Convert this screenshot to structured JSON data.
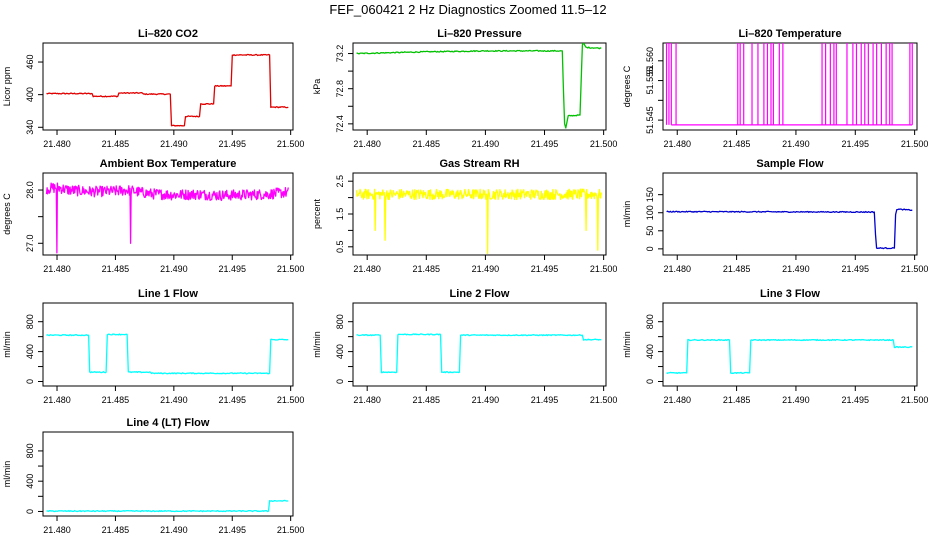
{
  "title": "FEF_060421  2 Hz Diagnostics Zoomed 11.5–12",
  "x_ticks": [
    "21.480",
    "21.485",
    "21.490",
    "21.495",
    "21.500"
  ],
  "x_tick_values": [
    21.48,
    21.485,
    21.49,
    21.495,
    21.5
  ],
  "xlim": [
    21.4788,
    21.5002
  ],
  "chart_data": [
    {
      "type": "line",
      "title": "Li–820 CO2",
      "ylabel": "Licor ppm",
      "color": "#e00000",
      "ylim": [
        335,
        495
      ],
      "yticks": [
        340,
        400,
        460
      ],
      "yticklabels": [
        "340",
        "400",
        "460"
      ],
      "x": [
        21.4791,
        21.483,
        21.4831,
        21.4852,
        21.4853,
        21.4873,
        21.4874,
        21.4897,
        21.4898,
        21.4909,
        21.491,
        21.4922,
        21.4923,
        21.4934,
        21.4935,
        21.4949,
        21.495,
        21.4982,
        21.4983,
        21.4998
      ],
      "y": [
        402,
        402,
        397,
        397,
        403,
        403,
        401,
        401,
        343,
        343,
        360,
        360,
        383,
        383,
        416,
        416,
        473,
        473,
        377,
        377
      ]
    },
    {
      "type": "line",
      "title": "Li–820 Pressure",
      "ylabel": "kPa",
      "color": "#00c000",
      "ylim": [
        72.33,
        73.32
      ],
      "yticks": [
        72.4,
        72.6,
        72.8,
        73.0,
        73.2
      ],
      "yticklabels": [
        "72.4",
        "",
        "72.8",
        "",
        "73.2"
      ],
      "x": [
        21.4791,
        21.485,
        21.49,
        21.4965,
        21.4966,
        21.4967,
        21.4968,
        21.497,
        21.498,
        21.4981,
        21.4982,
        21.4983,
        21.4985,
        21.4998
      ],
      "y": [
        73.2,
        73.22,
        73.23,
        73.23,
        72.8,
        72.4,
        72.35,
        72.49,
        72.5,
        72.9,
        73.3,
        73.32,
        73.27,
        73.26
      ]
    },
    {
      "type": "line",
      "title": "Li–820 Temperature",
      "ylabel": "degrees C",
      "color": "#ff00ff",
      "ylim": [
        51.5425,
        51.5645
      ],
      "yticks": [
        51.545,
        51.55,
        51.555,
        51.56
      ],
      "yticklabels": [
        "51.545",
        "",
        "51.555",
        "51.560"
      ],
      "baseline": 51.5438,
      "spikes": [
        21.4791,
        21.4793,
        21.4795,
        21.4799,
        21.4851,
        21.4853,
        21.4856,
        21.4863,
        21.4868,
        21.4873,
        21.4876,
        21.4879,
        21.4881,
        21.4886,
        21.4889,
        21.4922,
        21.4925,
        21.4929,
        21.4932,
        21.4934,
        21.4943,
        21.4948,
        21.4951,
        21.4955,
        21.4958,
        21.4961,
        21.4965,
        21.4968,
        21.4972,
        21.4976,
        21.4979,
        21.4981,
        21.4996,
        21.4998
      ],
      "spike_top": 51.5645
    },
    {
      "type": "line",
      "title": "Ambient Box Temperature",
      "ylabel": "degrees C",
      "color": "#ff00ff",
      "ylim": [
        26.78,
        28.32
      ],
      "yticks": [
        27.0,
        27.5,
        28.0
      ],
      "yticklabels": [
        "27.0",
        "",
        "28.0"
      ],
      "x": [
        21.4791,
        21.48,
        21.481,
        21.483,
        21.485,
        21.486,
        21.488,
        21.49,
        21.492,
        21.494,
        21.496,
        21.498,
        21.4998
      ],
      "y": [
        28.02,
        28.05,
        28.0,
        27.97,
        27.98,
        28.0,
        27.93,
        27.91,
        27.92,
        27.9,
        27.91,
        27.92,
        27.96
      ],
      "noise": 0.1,
      "dips": [
        [
          21.48,
          26.82
        ],
        [
          21.4863,
          27.0
        ]
      ]
    },
    {
      "type": "line",
      "title": "Gas Stream RH",
      "ylabel": "percent",
      "color": "#ffff00",
      "ylim": [
        0.25,
        2.75
      ],
      "yticks": [
        0.5,
        1.0,
        1.5,
        2.0,
        2.5
      ],
      "yticklabels": [
        "0.5",
        "",
        "1.5",
        "",
        "2.5"
      ],
      "x": [
        21.4791,
        21.4998
      ],
      "y": [
        2.1,
        2.1
      ],
      "noise": 0.16,
      "dips": [
        [
          21.4807,
          1.0
        ],
        [
          21.4815,
          0.7
        ],
        [
          21.4902,
          0.3
        ],
        [
          21.4985,
          1.0
        ],
        [
          21.4995,
          0.4
        ]
      ]
    },
    {
      "type": "line",
      "title": "Sample Flow",
      "ylabel": "ml/min",
      "color": "#0000cc",
      "ylim": [
        -17,
        210
      ],
      "yticks": [
        0,
        50,
        100,
        150
      ],
      "yticklabels": [
        "0",
        "50",
        "100",
        "150"
      ],
      "x": [
        21.4791,
        21.4966,
        21.4967,
        21.4968,
        21.4983,
        21.4984,
        21.4985,
        21.4998
      ],
      "y": [
        103,
        102,
        40,
        2,
        2,
        95,
        110,
        107
      ]
    },
    {
      "type": "line",
      "title": "Line 1 Flow",
      "ylabel": "ml/min",
      "color": "#00ffff",
      "ylim": [
        -60,
        1050
      ],
      "yticks": [
        0,
        200,
        400,
        600,
        800
      ],
      "yticklabels": [
        "0",
        "",
        "400",
        "",
        "800"
      ],
      "x": [
        21.4791,
        21.4827,
        21.4828,
        21.4842,
        21.4843,
        21.486,
        21.4861,
        21.488,
        21.4881,
        21.4982,
        21.4983,
        21.4998
      ],
      "y": [
        620,
        620,
        125,
        125,
        630,
        630,
        125,
        125,
        110,
        110,
        560,
        560
      ]
    },
    {
      "type": "line",
      "title": "Line 2 Flow",
      "ylabel": "ml/min",
      "color": "#00ffff",
      "ylim": [
        -60,
        1050
      ],
      "yticks": [
        0,
        200,
        400,
        600,
        800
      ],
      "yticklabels": [
        "0",
        "",
        "400",
        "",
        "800"
      ],
      "x": [
        21.4791,
        21.4811,
        21.4812,
        21.4825,
        21.4826,
        21.4862,
        21.4863,
        21.4878,
        21.4879,
        21.4982,
        21.4983,
        21.4998
      ],
      "y": [
        620,
        620,
        125,
        125,
        630,
        630,
        125,
        125,
        620,
        620,
        560,
        560
      ]
    },
    {
      "type": "line",
      "title": "Line 3 Flow",
      "ylabel": "ml/min",
      "color": "#00ffff",
      "ylim": [
        -60,
        1050
      ],
      "yticks": [
        0,
        200,
        400,
        600,
        800
      ],
      "yticklabels": [
        "0",
        "",
        "400",
        "",
        "800"
      ],
      "x": [
        21.4791,
        21.4808,
        21.4809,
        21.4844,
        21.4845,
        21.4861,
        21.4862,
        21.4982,
        21.4983,
        21.4998
      ],
      "y": [
        115,
        115,
        555,
        555,
        115,
        115,
        555,
        555,
        460,
        460
      ]
    },
    {
      "type": "line",
      "title": "Line 4 (LT) Flow",
      "ylabel": "ml/min",
      "color": "#00ffff",
      "ylim": [
        -60,
        1050
      ],
      "yticks": [
        0,
        200,
        400,
        600,
        800
      ],
      "yticklabels": [
        "0",
        "",
        "400",
        "",
        "800"
      ],
      "x": [
        21.4791,
        21.4981,
        21.4982,
        21.4998
      ],
      "y": [
        5,
        5,
        140,
        140
      ]
    }
  ]
}
